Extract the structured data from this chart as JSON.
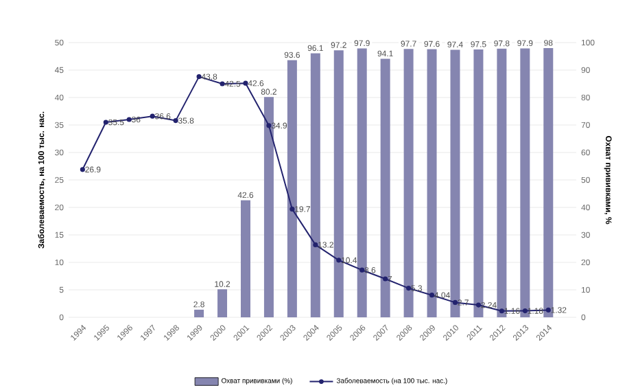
{
  "chart_data": {
    "type": "bar",
    "ylabel": "Заболеваемость, на 100 тыс. нас.",
    "y2label": "Охват прививками, %",
    "categories": [
      "1994",
      "1995",
      "1996",
      "1997",
      "1998",
      "1999",
      "2000",
      "2001",
      "2002",
      "2003",
      "2004",
      "2005",
      "2006",
      "2007",
      "2008",
      "2009",
      "2010",
      "2011",
      "2012",
      "2013",
      "2014"
    ],
    "series": [
      {
        "axis": "y2",
        "name": "Охват прививками (%)",
        "color": "#8585b0",
        "values": [
          null,
          null,
          null,
          null,
          null,
          2.8,
          10.2,
          42.6,
          80.2,
          93.6,
          96.1,
          97.2,
          97.9,
          94.1,
          97.7,
          97.6,
          97.4,
          97.5,
          97.8,
          97.9,
          98
        ]
      },
      {
        "type": "line",
        "name": "Заболеваемость (на 100 тыс. нас.)",
        "color": "#23236e",
        "values": [
          26.9,
          35.5,
          36,
          36.6,
          35.8,
          43.8,
          42.5,
          42.6,
          34.9,
          19.7,
          13.2,
          10.4,
          8.6,
          7,
          5.3,
          4.04,
          2.7,
          2.24,
          1.16,
          1.18,
          1.32
        ]
      }
    ],
    "ylim": [
      0,
      50
    ],
    "yticks": [
      0,
      5,
      10,
      15,
      20,
      25,
      30,
      35,
      40,
      45,
      50
    ],
    "y2lim": [
      0,
      100
    ],
    "y2ticks": [
      0,
      10,
      20,
      30,
      40,
      50,
      60,
      70,
      80,
      90,
      100
    ],
    "grid": "y",
    "legend": "bottom",
    "marker": "circle",
    "data_labels": true
  }
}
